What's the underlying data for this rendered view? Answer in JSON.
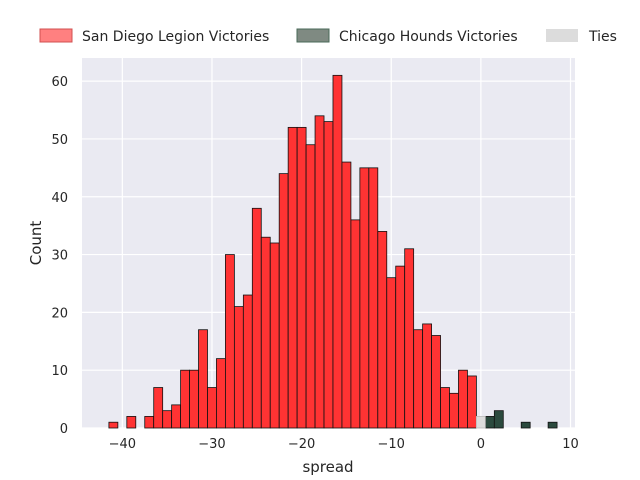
{
  "chart_data": {
    "type": "bar",
    "subtype": "histogram",
    "xlabel": "spread",
    "ylabel": "Count",
    "xlim": [
      -44.5,
      10.5
    ],
    "ylim": [
      0,
      64
    ],
    "xticks": [
      -40,
      -30,
      -20,
      -10,
      0,
      10
    ],
    "yticks": [
      0,
      10,
      20,
      30,
      40,
      50,
      60
    ],
    "grid": true,
    "legend_position": "top",
    "series": [
      {
        "name": "San Diego Legion Victories",
        "color": "#ff3333",
        "bins": [
          {
            "x": -41,
            "count": 1
          },
          {
            "x": -39,
            "count": 2
          },
          {
            "x": -37,
            "count": 2
          },
          {
            "x": -36,
            "count": 7
          },
          {
            "x": -35,
            "count": 3
          },
          {
            "x": -34,
            "count": 4
          },
          {
            "x": -33,
            "count": 10
          },
          {
            "x": -32,
            "count": 10
          },
          {
            "x": -31,
            "count": 17
          },
          {
            "x": -30,
            "count": 7
          },
          {
            "x": -29,
            "count": 12
          },
          {
            "x": -28,
            "count": 30
          },
          {
            "x": -27,
            "count": 21
          },
          {
            "x": -26,
            "count": 23
          },
          {
            "x": -25,
            "count": 38
          },
          {
            "x": -24,
            "count": 33
          },
          {
            "x": -23,
            "count": 32
          },
          {
            "x": -22,
            "count": 44
          },
          {
            "x": -21,
            "count": 52
          },
          {
            "x": -20,
            "count": 52
          },
          {
            "x": -19,
            "count": 49
          },
          {
            "x": -18,
            "count": 54
          },
          {
            "x": -17,
            "count": 53
          },
          {
            "x": -16,
            "count": 61
          },
          {
            "x": -15,
            "count": 46
          },
          {
            "x": -14,
            "count": 36
          },
          {
            "x": -13,
            "count": 45
          },
          {
            "x": -12,
            "count": 45
          },
          {
            "x": -11,
            "count": 34
          },
          {
            "x": -10,
            "count": 26
          },
          {
            "x": -9,
            "count": 28
          },
          {
            "x": -8,
            "count": 31
          },
          {
            "x": -7,
            "count": 17
          },
          {
            "x": -6,
            "count": 18
          },
          {
            "x": -5,
            "count": 16
          },
          {
            "x": -4,
            "count": 7
          },
          {
            "x": -3,
            "count": 6
          },
          {
            "x": -2,
            "count": 10
          },
          {
            "x": -1,
            "count": 9
          }
        ]
      },
      {
        "name": "Chicago Hounds Victories",
        "color": "#2b4a3e",
        "bins": [
          {
            "x": 1,
            "count": 2
          },
          {
            "x": 2,
            "count": 3
          },
          {
            "x": 5,
            "count": 1
          },
          {
            "x": 8,
            "count": 1
          }
        ]
      },
      {
        "name": "Ties",
        "color": "#dcdcdc",
        "bins": [
          {
            "x": 0,
            "count": 2
          }
        ]
      }
    ]
  }
}
